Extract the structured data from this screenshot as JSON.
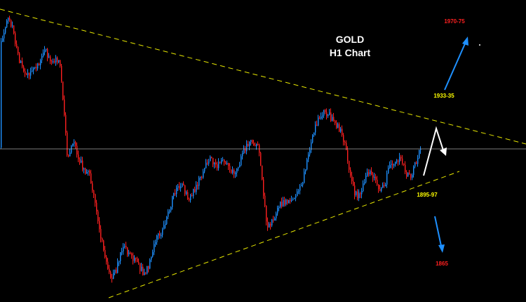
{
  "chart_data": {
    "type": "candlestick",
    "title": "GOLD",
    "subtitle": "H1 Chart",
    "colors": {
      "background": "#000000",
      "bull_candle": "#1e90ff",
      "bear_candle": "#ff2020",
      "trendline": "#e6e600",
      "reference_line": "#b0b0b0",
      "projection_white": "#ffffff",
      "projection_blue": "#1e90ff",
      "level_yellow": "#ffff00",
      "level_red": "#ff2020"
    },
    "levels": [
      {
        "label": "1970-75",
        "color_key": "level_red"
      },
      {
        "label": "1933-35",
        "color_key": "level_yellow"
      },
      {
        "label": "1895-97",
        "color_key": "level_yellow"
      },
      {
        "label": "1865",
        "color_key": "level_red"
      }
    ],
    "trendlines": [
      {
        "name": "descending resistance",
        "style": "dashed"
      },
      {
        "name": "ascending support",
        "style": "dashed"
      }
    ],
    "projections": [
      {
        "name": "white up-down path"
      },
      {
        "name": "blue arrow up"
      },
      {
        "name": "blue arrow down"
      }
    ]
  }
}
